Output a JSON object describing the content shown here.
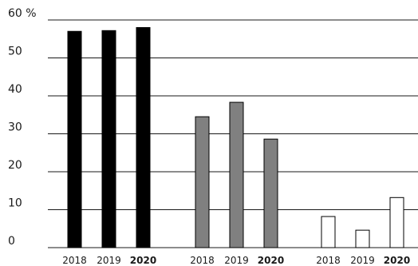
{
  "chart_data": {
    "type": "bar",
    "y_unit": "%",
    "ylim": [
      0,
      60
    ],
    "y_ticks": [
      0,
      10,
      20,
      30,
      40,
      50,
      60
    ],
    "y_tick_labels": [
      "0",
      "10",
      "20",
      "30",
      "40",
      "50",
      "60 %"
    ],
    "grid": true,
    "groups": [
      {
        "color": "#000000",
        "bars": [
          {
            "year": "2018",
            "value": 57,
            "bold": false
          },
          {
            "year": "2019",
            "value": 57.2,
            "bold": false
          },
          {
            "year": "2020",
            "value": 58,
            "bold": true
          }
        ]
      },
      {
        "color": "#808080",
        "bars": [
          {
            "year": "2018",
            "value": 34.5,
            "bold": false
          },
          {
            "year": "2019",
            "value": 38.3,
            "bold": false
          },
          {
            "year": "2020",
            "value": 28.6,
            "bold": true
          }
        ]
      },
      {
        "color": "#ffffff",
        "bars": [
          {
            "year": "2018",
            "value": 8.2,
            "bold": false
          },
          {
            "year": "2019",
            "value": 4.6,
            "bold": false
          },
          {
            "year": "2020",
            "value": 13.2,
            "bold": true
          }
        ]
      }
    ]
  }
}
